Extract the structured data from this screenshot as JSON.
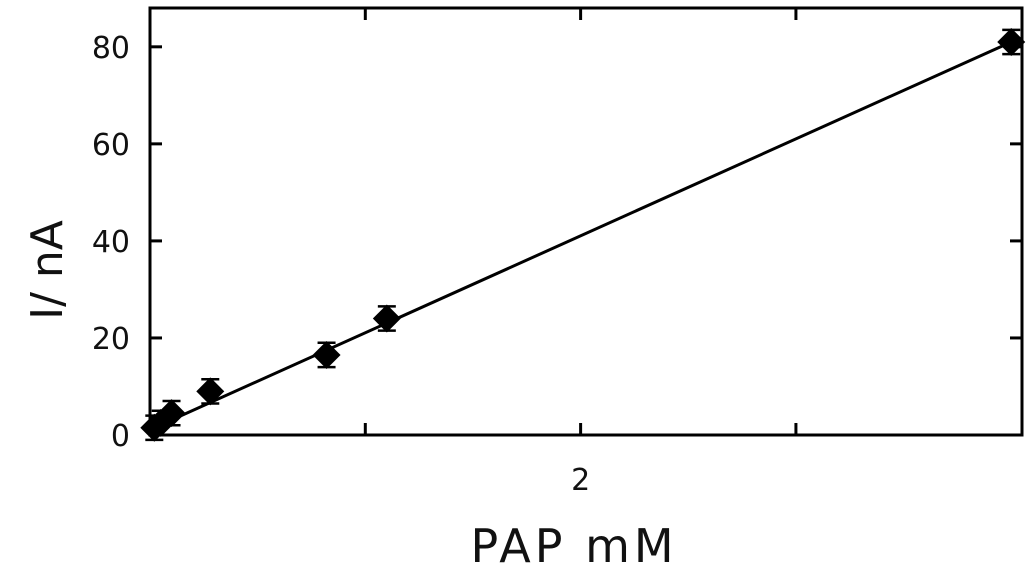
{
  "chart_data": {
    "type": "scatter",
    "title": "",
    "xlabel": "PAP mM",
    "ylabel": "I/ nA",
    "xlim": [
      0,
      4.05
    ],
    "ylim": [
      0,
      88
    ],
    "x_tick_labels": [
      {
        "value": 2,
        "label": "2"
      }
    ],
    "x_minor_ticks": [
      1,
      3
    ],
    "y_tick_labels": [
      {
        "value": 0,
        "label": "0"
      },
      {
        "value": 20,
        "label": "20"
      },
      {
        "value": 40,
        "label": "40"
      },
      {
        "value": 60,
        "label": "60"
      },
      {
        "value": 80,
        "label": "80"
      }
    ],
    "grid": false,
    "series": [
      {
        "points": [
          {
            "x": 0.02,
            "y": 1.5,
            "err": 2.5
          },
          {
            "x": 0.05,
            "y": 2.5,
            "err": 2.5
          },
          {
            "x": 0.1,
            "y": 4.5,
            "err": 2.5
          },
          {
            "x": 0.28,
            "y": 9,
            "err": 2.5
          },
          {
            "x": 0.82,
            "y": 16.5,
            "err": 2.5
          },
          {
            "x": 1.1,
            "y": 24,
            "err": 2.5
          },
          {
            "x": 4.0,
            "y": 81,
            "err": 2.5
          }
        ],
        "marker": "diamond",
        "color": "#000000"
      }
    ],
    "fit_line": {
      "x0": 0.02,
      "y0": 1.5,
      "x1": 4.0,
      "y1": 81
    }
  }
}
